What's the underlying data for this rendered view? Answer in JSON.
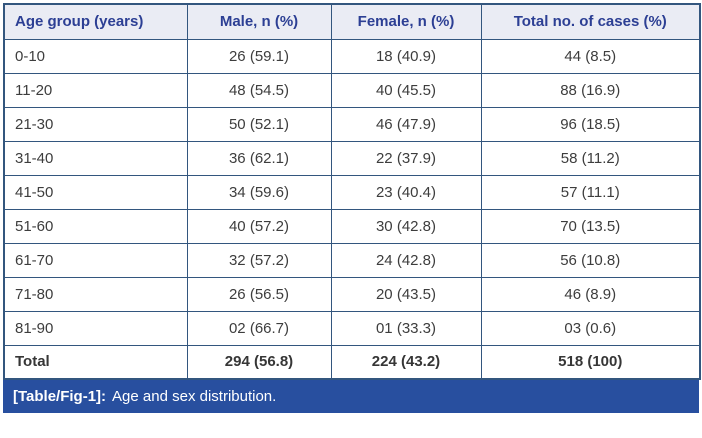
{
  "table": {
    "headers": [
      "Age group (years)",
      "Male, n (%)",
      "Female, n (%)",
      "Total no. of cases (%)"
    ],
    "rows": [
      [
        "0-10",
        "26 (59.1)",
        "18 (40.9)",
        "44 (8.5)"
      ],
      [
        "11-20",
        "48 (54.5)",
        "40 (45.5)",
        "88 (16.9)"
      ],
      [
        "21-30",
        "50 (52.1)",
        "46 (47.9)",
        "96 (18.5)"
      ],
      [
        "31-40",
        "36 (62.1)",
        "22 (37.9)",
        "58 (11.2)"
      ],
      [
        "41-50",
        "34 (59.6)",
        "23 (40.4)",
        "57 (11.1)"
      ],
      [
        "51-60",
        "40 (57.2)",
        "30 (42.8)",
        "70 (13.5)"
      ],
      [
        "61-70",
        "32 (57.2)",
        "24 (42.8)",
        "56 (10.8)"
      ],
      [
        "71-80",
        "26 (56.5)",
        "20 (43.5)",
        "46 (8.9)"
      ],
      [
        "81-90",
        "02 (66.7)",
        "01 (33.3)",
        "03 (0.6)"
      ]
    ],
    "total_row": [
      "Total",
      "294 (56.8)",
      "224 (43.2)",
      "518 (100)"
    ]
  },
  "caption": {
    "tag": "[Table/Fig-1]:",
    "text": "Age and sex distribution."
  },
  "colors": {
    "header_text": "#2c3f94",
    "header_bg": "#eaecf4",
    "grid_line": "#33567e",
    "body_text": "#3d3d3d",
    "caption_bg": "#284f9f",
    "caption_text": "#ffffff"
  }
}
